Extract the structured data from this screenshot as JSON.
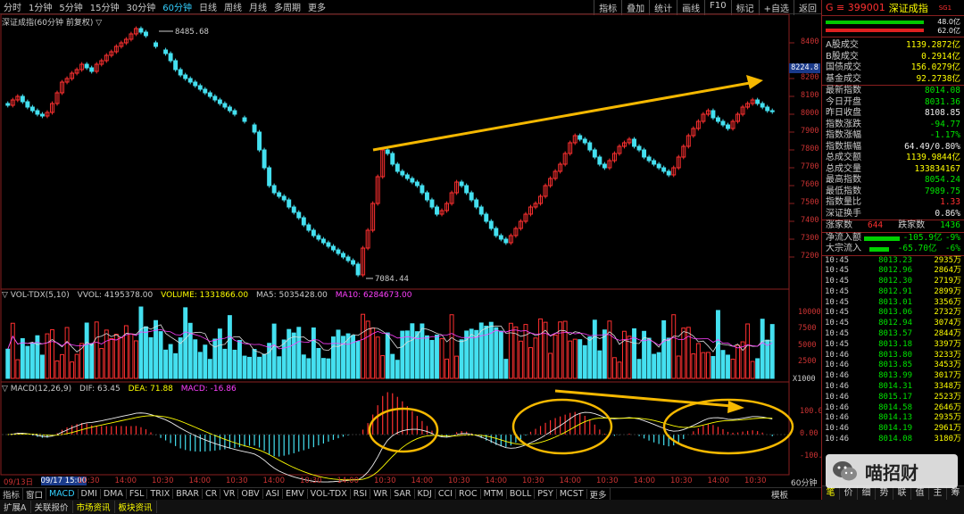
{
  "topbar": {
    "periods": [
      "分时",
      "1分钟",
      "5分钟",
      "15分钟",
      "30分钟",
      "60分钟",
      "日线",
      "周线",
      "月线",
      "多周期",
      "更多"
    ],
    "active_period": "60分钟",
    "right_buttons": [
      "指标",
      "叠加",
      "统计",
      "画线",
      "F10",
      "标记",
      "+自选",
      "返回"
    ]
  },
  "chart_title": "深证成指(60分钟 前复权) ▽",
  "price_axis": [
    "8400",
    "8200",
    "8100",
    "8000",
    "7900",
    "7800",
    "7700",
    "7600",
    "7500",
    "7400",
    "7300",
    "7200"
  ],
  "current_price_tag": "8224.8",
  "high_label": "8485.68",
  "low_label": "7084.44",
  "volume_title": {
    "name": "▽ VOL-TDX(5,10)",
    "vol": "VVOL: 4195378.00",
    "volume": "VOLUME: 1331866.00",
    "ma5": "MA5: 5035428.00",
    "ma10": "MA10: 6284673.00"
  },
  "volume_axis": [
    "10000",
    "7500",
    "5000",
    "2500"
  ],
  "volume_unit": "X1000",
  "macd_title": {
    "name": "▽ MACD(12,26,9)",
    "dif": "DIF: 63.45",
    "dea": "DEA: 71.88",
    "macd": "MACD: -16.86"
  },
  "macd_axis": [
    "100.0",
    "0.00",
    "-100.0"
  ],
  "time_axis": [
    "09/13日",
    "09/17 15:00",
    "10:30",
    "14:00",
    "10:30",
    "14:00",
    "10:30",
    "14:00",
    "10:30",
    "14:00",
    "10:30",
    "14:00",
    "10:30",
    "14:00",
    "10:30",
    "14:00",
    "10:30",
    "14:00",
    "10:30",
    "14:00",
    "10:30"
  ],
  "time_axis_label": "60分钟",
  "indicator_tabs": [
    "指标",
    "窗口",
    "MACD",
    "DMI",
    "DMA",
    "FSL",
    "TRIX",
    "BRAR",
    "CR",
    "VR",
    "OBV",
    "ASI",
    "EMV",
    "VOL-TDX",
    "RSI",
    "WR",
    "SAR",
    "KDJ",
    "CCI",
    "ROC",
    "MTM",
    "BOLL",
    "PSY",
    "MCST",
    "更多"
  ],
  "active_indicator": "MACD",
  "template_label": "模板",
  "footer": [
    "扩展A",
    "关联报价",
    "市场资讯",
    "板块资讯"
  ],
  "right_panel": {
    "code": "G ≡ 399001",
    "name": "深证成指",
    "sg": "SG1",
    "bar1_value": "48.0亿",
    "bar2_value": "62.0亿",
    "stats": [
      {
        "k": "A股成交",
        "v": "1139.2872亿",
        "c": "yellow"
      },
      {
        "k": "B股成交",
        "v": "0.2914亿",
        "c": "yellow"
      },
      {
        "k": "国债成交",
        "v": "156.0279亿",
        "c": "yellow"
      },
      {
        "k": "基金成交",
        "v": "92.2738亿",
        "c": "yellow"
      }
    ],
    "quote": [
      {
        "k": "最新指数",
        "v": "8014.08",
        "c": "green"
      },
      {
        "k": "今日开盘",
        "v": "8031.36",
        "c": "green"
      },
      {
        "k": "昨日收盘",
        "v": "8108.85",
        "c": "white"
      },
      {
        "k": "指数涨跌",
        "v": "-94.77",
        "c": "green"
      },
      {
        "k": "指数涨幅",
        "v": "-1.17%",
        "c": "green"
      },
      {
        "k": "指数振幅",
        "v": "64.49/0.80%",
        "c": "white"
      },
      {
        "k": "总成交额",
        "v": "1139.9844亿",
        "c": "yellow"
      },
      {
        "k": "总成交量",
        "v": "133834167",
        "c": "yellow"
      },
      {
        "k": "最高指数",
        "v": "8054.24",
        "c": "green"
      },
      {
        "k": "最低指数",
        "v": "7989.75",
        "c": "green"
      },
      {
        "k": "指数量比",
        "v": "1.33",
        "c": "red"
      },
      {
        "k": "深证换手",
        "v": "0.86%",
        "c": "white"
      }
    ],
    "updown": {
      "up_label": "涨家数",
      "up": "644",
      "down_label": "跌家数",
      "down": "1436"
    },
    "flow": [
      {
        "k": "净流入额",
        "v": "-105.9亿",
        "pct": "-9%"
      },
      {
        "k": "大宗流入",
        "v": "-65.70亿",
        "pct": "-6%"
      }
    ],
    "ticks": [
      {
        "t": "10:45",
        "p": "8013.23",
        "v": "2935万"
      },
      {
        "t": "10:45",
        "p": "8012.96",
        "v": "2864万"
      },
      {
        "t": "10:45",
        "p": "8012.30",
        "v": "2719万"
      },
      {
        "t": "10:45",
        "p": "8012.91",
        "v": "2899万"
      },
      {
        "t": "10:45",
        "p": "8013.01",
        "v": "3356万"
      },
      {
        "t": "10:45",
        "p": "8013.06",
        "v": "2732万"
      },
      {
        "t": "10:45",
        "p": "8012.94",
        "v": "3074万"
      },
      {
        "t": "10:45",
        "p": "8013.57",
        "v": "2844万"
      },
      {
        "t": "10:45",
        "p": "8013.18",
        "v": "3397万"
      },
      {
        "t": "10:46",
        "p": "8013.80",
        "v": "3233万"
      },
      {
        "t": "10:46",
        "p": "8013.85",
        "v": "3453万"
      },
      {
        "t": "10:46",
        "p": "8013.99",
        "v": "3017万"
      },
      {
        "t": "10:46",
        "p": "8014.31",
        "v": "3348万"
      },
      {
        "t": "10:46",
        "p": "8015.17",
        "v": "2523万"
      },
      {
        "t": "10:46",
        "p": "8014.58",
        "v": "2646万"
      },
      {
        "t": "10:46",
        "p": "8014.13",
        "v": "2935万"
      },
      {
        "t": "10:46",
        "p": "8014.19",
        "v": "2961万"
      },
      {
        "t": "10:46",
        "p": "8014.08",
        "v": "3180万"
      }
    ],
    "bottom_tabs": [
      "笔",
      "价",
      "细",
      "势",
      "联",
      "值",
      "主",
      "筹"
    ]
  },
  "watermark": "喵招财",
  "colors": {
    "up": "#ff3030",
    "down": "#44e0f0",
    "border": "#8a1f1f",
    "arrow": "#f5b800"
  }
}
